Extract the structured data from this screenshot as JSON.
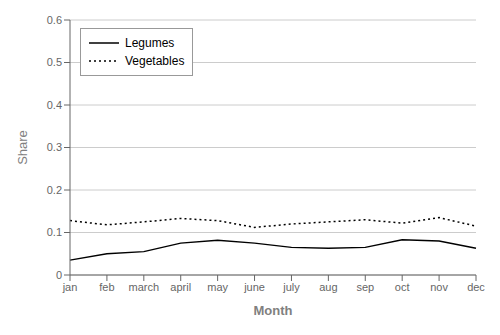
{
  "chart_data": {
    "type": "line",
    "categories": [
      "jan",
      "feb",
      "march",
      "april",
      "may",
      "june",
      "july",
      "aug",
      "sep",
      "oct",
      "nov",
      "dec"
    ],
    "series": [
      {
        "name": "Legumes",
        "color": "#000000",
        "line_style": "solid",
        "values": [
          0.035,
          0.05,
          0.055,
          0.075,
          0.082,
          0.075,
          0.065,
          0.063,
          0.065,
          0.083,
          0.08,
          0.063
        ]
      },
      {
        "name": "Vegetables",
        "color": "#000000",
        "line_style": "dotted",
        "values": [
          0.128,
          0.118,
          0.125,
          0.133,
          0.128,
          0.112,
          0.12,
          0.125,
          0.13,
          0.122,
          0.135,
          0.115
        ]
      }
    ],
    "x_label": "Month",
    "y_label": "Share",
    "ylim": [
      0,
      0.6
    ],
    "yticks": [
      0,
      0.1,
      0.2,
      0.3,
      0.4,
      0.5,
      0.6
    ],
    "grid": true,
    "legend": "upper left"
  }
}
